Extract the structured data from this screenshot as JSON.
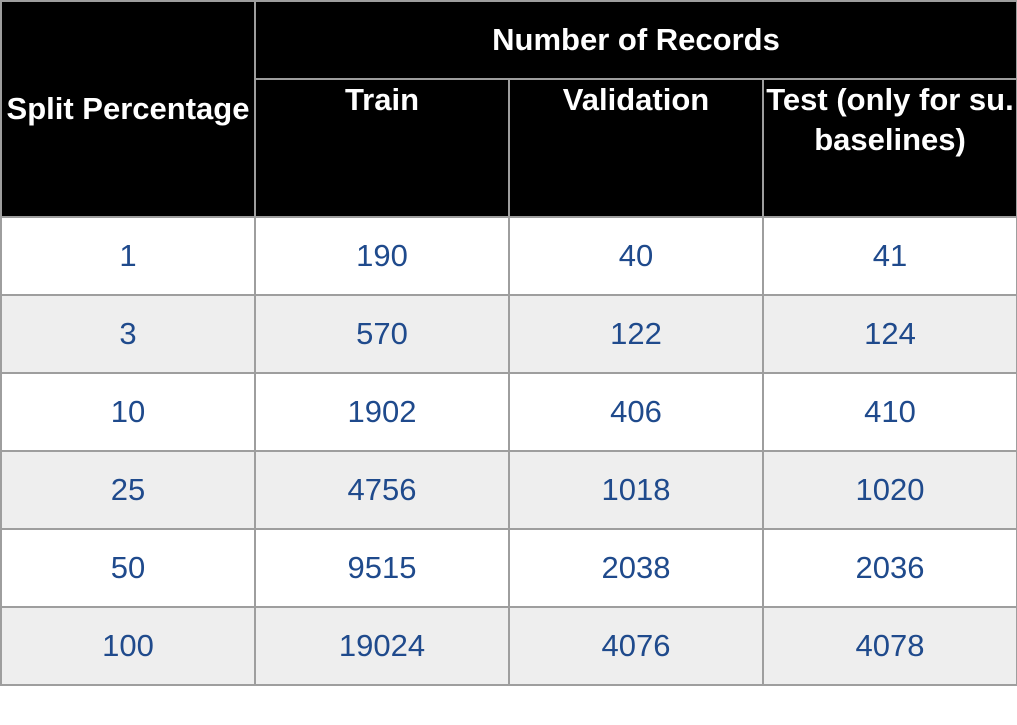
{
  "table": {
    "header": {
      "split": "Split Percentage",
      "group": "Number of Records",
      "columns": [
        "Train",
        "Validation",
        "Test (only for su. baselines)"
      ]
    },
    "rows": [
      [
        "1",
        "190",
        "40",
        "41"
      ],
      [
        "3",
        "570",
        "122",
        "124"
      ],
      [
        "10",
        "1902",
        "406",
        "410"
      ],
      [
        "25",
        "4756",
        "1018",
        "1020"
      ],
      [
        "50",
        "9515",
        "2038",
        "2036"
      ],
      [
        "100",
        "19024",
        "4076",
        "4078"
      ]
    ]
  },
  "colors": {
    "header_bg": "#000000",
    "header_text": "#ffffff",
    "cell_text": "#1f4a8c",
    "stripe_bg": "#eeeeee",
    "border": "#9e9e9e"
  }
}
